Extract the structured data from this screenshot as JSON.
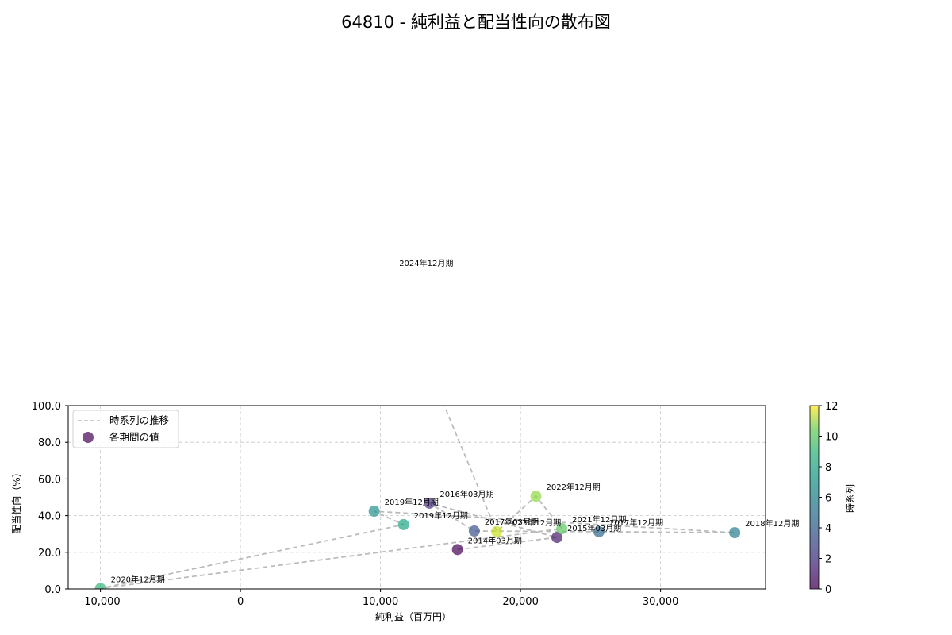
{
  "chart_data": {
    "type": "scatter",
    "title": "64810 - 純利益と配当性向の散布図",
    "xlabel": "純利益（百万円）",
    "ylabel": "配当性向（%）",
    "xlim": [
      -12300,
      37500
    ],
    "ylim": [
      0,
      100
    ],
    "x_ticks": [
      -10000,
      0,
      10000,
      20000,
      30000
    ],
    "x_tick_labels": [
      "-10,000",
      "0",
      "10,000",
      "20,000",
      "30,000"
    ],
    "y_ticks": [
      0,
      20,
      40,
      60,
      80,
      100
    ],
    "y_tick_labels": [
      "0.0",
      "20.0",
      "40.0",
      "60.0",
      "80.0",
      "100.0"
    ],
    "grid": true,
    "legend": {
      "position": "upper left",
      "entries": [
        {
          "label": "時系列の推移",
          "type": "dashed-line",
          "color": "#bbbbbb"
        },
        {
          "label": "各期間の値",
          "type": "marker",
          "color": "#440154"
        }
      ]
    },
    "colorbar": {
      "label": "時系列",
      "min": 0,
      "max": 12,
      "ticks": [
        0,
        2,
        4,
        6,
        8,
        10,
        12
      ],
      "colormap": "viridis"
    },
    "points": [
      {
        "label": "2014年03月期",
        "x": 15500,
        "y": 21.5,
        "t": 0,
        "color": "#440154"
      },
      {
        "label": "2015年03月期",
        "x": 22600,
        "y": 28.1,
        "t": 1,
        "color": "#481a6c"
      },
      {
        "label": "2016年03月期",
        "x": 13500,
        "y": 46.8,
        "t": 2,
        "color": "#472f7d"
      },
      {
        "label": "2017年03月期",
        "x": 16700,
        "y": 31.6,
        "t": 3,
        "color": "#3b528b"
      },
      {
        "label": "2017年12月期",
        "x": 25600,
        "y": 31.2,
        "t": 4,
        "color": "#31688e"
      },
      {
        "label": "2018年12月期",
        "x": 35300,
        "y": 30.7,
        "t": 5,
        "color": "#287c8e"
      },
      {
        "label": "2019年12月期",
        "x": 9550,
        "y": 42.4,
        "t": 6,
        "color": "#21918c"
      },
      {
        "label": "2019年12月期",
        "x": 11650,
        "y": 35.1,
        "t": 7,
        "color": "#20a486"
      },
      {
        "label": "2020年12月期",
        "x": -10000,
        "y": 0.3,
        "t": 8,
        "color": "#35b779"
      },
      {
        "label": "2021年12月期",
        "x": 22950,
        "y": 32.9,
        "t": 9,
        "color": "#5ec962"
      },
      {
        "label": "2022年12月期",
        "x": 21100,
        "y": 50.6,
        "t": 10,
        "color": "#90d743"
      },
      {
        "label": "2023年12月期",
        "x": 18300,
        "y": 31.2,
        "t": 11,
        "color": "#c8e020"
      },
      {
        "label": "2024年12月期",
        "x": 10600,
        "y": 172.7,
        "t": 12,
        "color": "#fde725"
      }
    ]
  }
}
